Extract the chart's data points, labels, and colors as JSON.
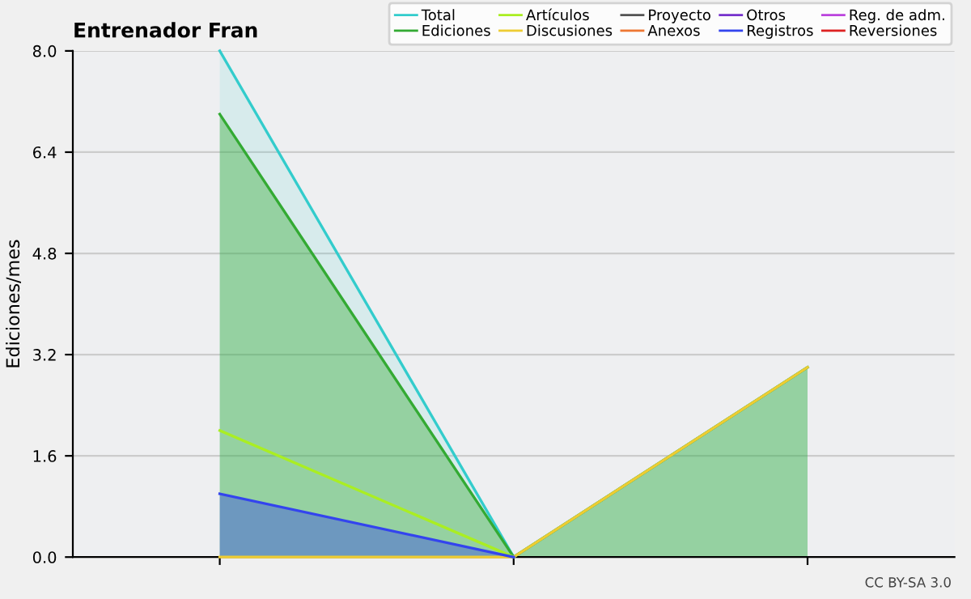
{
  "chart_data": {
    "type": "line",
    "title": "Entrenador Fran",
    "ylabel": "Ediciones/mes",
    "categories": [
      null,
      null,
      null
    ],
    "series": [
      {
        "name": "Total",
        "type": "area",
        "color": "#33cccc",
        "values": [
          8,
          0,
          3
        ]
      },
      {
        "name": "Ediciones",
        "type": "area",
        "color": "#33aa33",
        "values": [
          7,
          0,
          3
        ]
      },
      {
        "name": "Artículos",
        "color": "#aaee22",
        "values": [
          2,
          0,
          null
        ]
      },
      {
        "name": "Discusiones",
        "color": "#eecc33",
        "values": [
          0,
          0,
          3
        ]
      },
      {
        "name": "Proyecto",
        "color": "#555555",
        "values": [
          null,
          null,
          null
        ]
      },
      {
        "name": "Anexos",
        "color": "#ee7733",
        "values": [
          null,
          null,
          null
        ]
      },
      {
        "name": "Otros",
        "color": "#7733cc",
        "values": [
          null,
          null,
          null
        ]
      },
      {
        "name": "Registros",
        "type": "area",
        "color": "#3344ee",
        "values": [
          1,
          0,
          null
        ]
      },
      {
        "name": "Reg. de adm.",
        "color": "#bb44dd",
        "values": [
          null,
          null,
          null
        ]
      },
      {
        "name": "Reversiones",
        "color": "#dd2222",
        "values": [
          null,
          null,
          null
        ]
      }
    ],
    "ylim": [
      0,
      8
    ],
    "yticks": [
      {
        "value": 0,
        "label": "0.0"
      },
      1.6,
      3.2,
      4.8,
      6.4,
      {
        "value": 8,
        "label": "8.0"
      }
    ],
    "grid": "y",
    "legend": "top right",
    "annotations": [
      "CC BY-SA 3.0"
    ]
  }
}
